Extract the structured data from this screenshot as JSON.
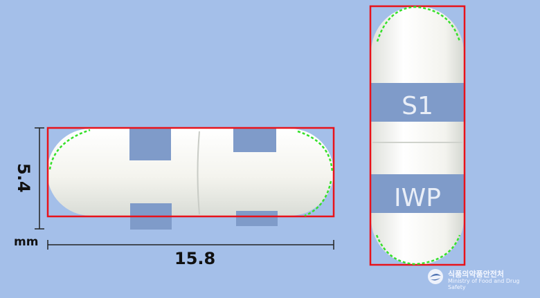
{
  "measurements": {
    "length_value": "15.8",
    "diameter_value": "5.4",
    "unit": "mm"
  },
  "capsule": {
    "imprint_line1": "S1",
    "imprint_line2": "IWP",
    "body_color": "#f7f7f2",
    "band_color": "#7f9bc9"
  },
  "annotation": {
    "bbox_color": "#e8121a",
    "edge_marker_color": "#35e02a"
  },
  "logo": {
    "korean_name": "식품의약품안전처",
    "english_name": "Ministry of Food and Drug Safety"
  }
}
